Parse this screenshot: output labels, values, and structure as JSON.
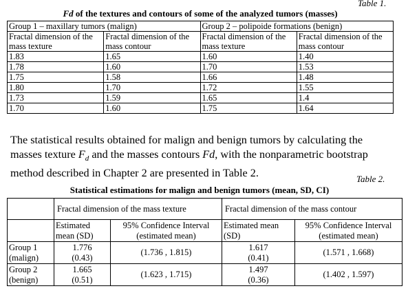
{
  "table1": {
    "label": "Table 1.",
    "title_italic": "Fd",
    "title": " of the textures and contours of some of the analyzed tumors (masses)",
    "groups": [
      "Group 1 – maxillary tumors (malign)",
      "Group 2 – polipoide formations (benign)"
    ],
    "columns": [
      "Fractal dimension of the mass texture",
      "Fractal dimension of the mass contour",
      "Fractal dimension of the mass texture",
      "Fractal dimension of the mass contour"
    ],
    "rows": [
      [
        "1.83",
        "1.65",
        "1.60",
        "1.40"
      ],
      [
        "1.78",
        "1.60",
        "1.70",
        "1.53"
      ],
      [
        "1.75",
        "1.58",
        "1.66",
        "1.48"
      ],
      [
        "1.80",
        "1.70",
        "1.72",
        "1.55"
      ],
      [
        "1.73",
        "1.59",
        "1.65",
        "1.4"
      ],
      [
        "1.70",
        "1.60",
        "1.75",
        "1.64"
      ]
    ]
  },
  "paragraph": {
    "part1": "The statistical results obtained for malign and benign tumors by calculating the masses texture ",
    "var1": "F",
    "var1_sub": "d",
    "part2": " and the masses contours ",
    "var2": "Fd",
    "part3": ", with the nonparametric bootstrap method described in Chapter 2 are presented in Table 2."
  },
  "table2": {
    "label": "Table 2.",
    "title": "Statistical estimations for malign and benign tumors (mean, SD, CI)",
    "groups": [
      "Fractal dimension of the mass texture",
      "Fractal dimension of the mass contour"
    ],
    "columns": [
      "Estimated mean (SD)",
      "95% Confidence Interval (estimated mean)",
      "Estimated mean (SD)",
      "95% Confidence Interval (estimated mean)"
    ],
    "rows": [
      [
        "Group 1 (malign)",
        "1.776",
        "(0.43)",
        "(1.736 , 1.815)",
        "1.617",
        "(0.41)",
        "(1.571 , 1.668)"
      ],
      [
        "Group 2 (benign)",
        "1.665",
        "(0.51)",
        "(1.623 , 1.715)",
        "1.497",
        "(0.36)",
        "(1.402 , 1.597)"
      ]
    ]
  }
}
